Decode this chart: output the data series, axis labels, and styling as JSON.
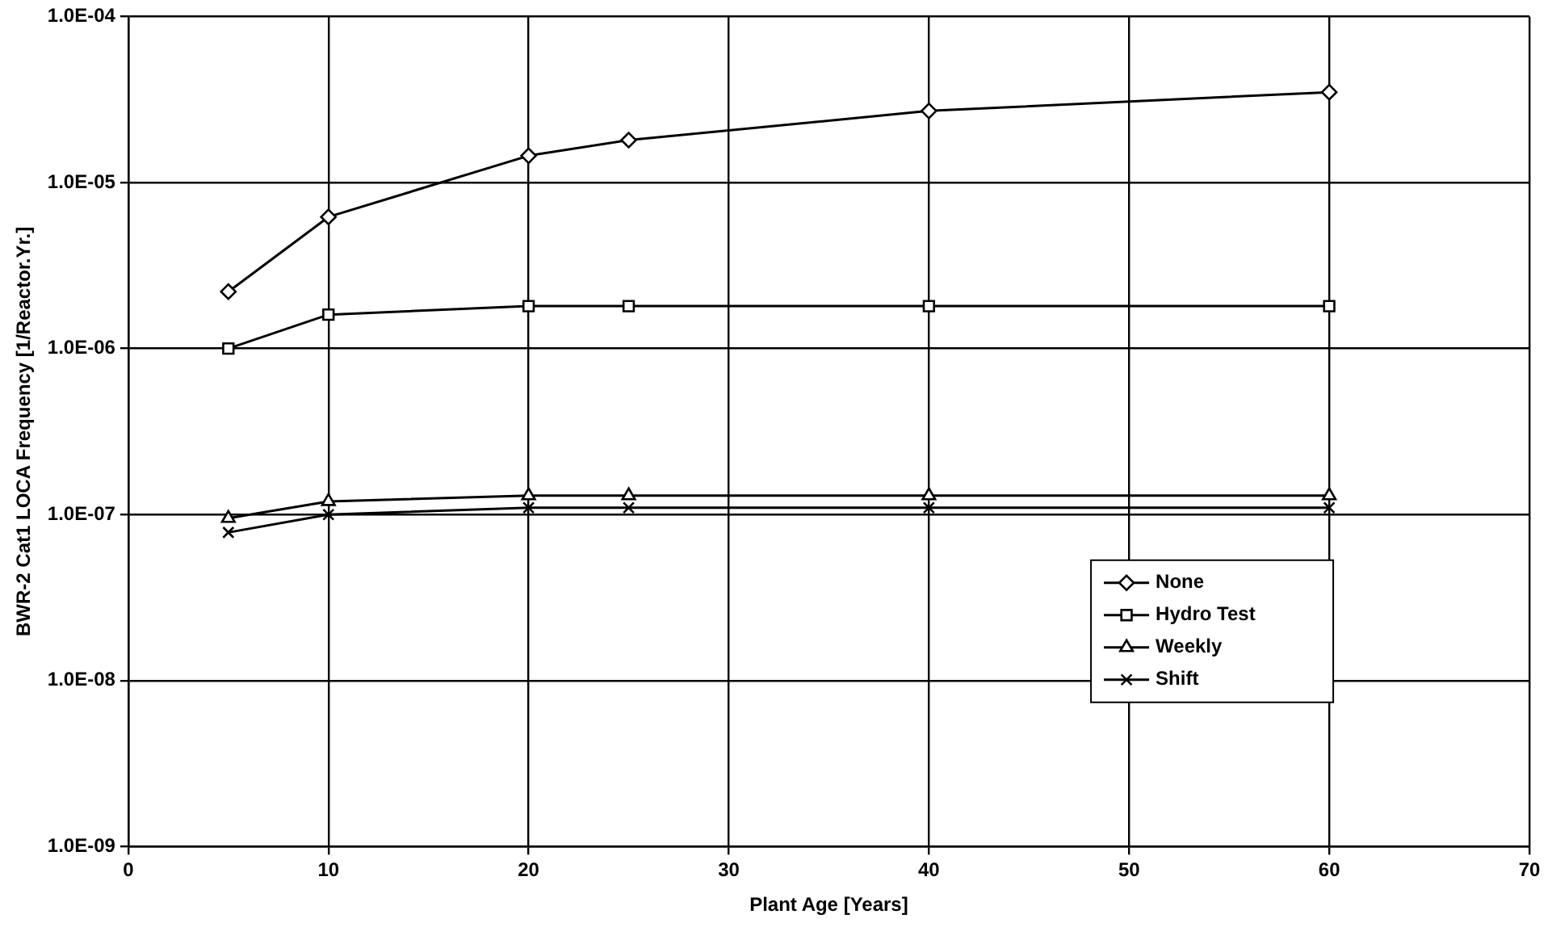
{
  "chart_data": {
    "type": "line",
    "xlabel": "Plant Age [Years]",
    "ylabel": "BWR-2 Cat1 LOCA Frequency [1/Reactor.Yr.]",
    "x": [
      5,
      10,
      20,
      25,
      40,
      60
    ],
    "series": [
      {
        "name": "None",
        "color": "#000000",
        "marker": "diamond",
        "values": [
          2.2e-06,
          6.2e-06,
          1.45e-05,
          1.8e-05,
          2.7e-05,
          3.5e-05
        ]
      },
      {
        "name": "Hydro Test",
        "color": "#000000",
        "marker": "square",
        "values": [
          1e-06,
          1.6e-06,
          1.8e-06,
          1.8e-06,
          1.8e-06,
          1.8e-06
        ]
      },
      {
        "name": "Weekly",
        "color": "#000000",
        "marker": "triangle",
        "values": [
          9.5e-08,
          1.2e-07,
          1.3e-07,
          1.3e-07,
          1.3e-07,
          1.3e-07
        ]
      },
      {
        "name": "Shift",
        "color": "#000000",
        "marker": "cross",
        "values": [
          7.8e-08,
          1e-07,
          1.1e-07,
          1.1e-07,
          1.1e-07,
          1.1e-07
        ]
      }
    ],
    "log": "y",
    "xlim": [
      0,
      70
    ],
    "xticks": [
      0,
      10,
      20,
      30,
      40,
      50,
      60,
      70
    ],
    "ylim": [
      1e-09,
      0.0001
    ],
    "yticks": [
      {
        "value": 1e-09,
        "label": "1.0E-09"
      },
      {
        "value": 1e-08,
        "label": "1.0E-08"
      },
      {
        "value": 1e-07,
        "label": "1.0E-07"
      },
      {
        "value": 1e-06,
        "label": "1.0E-06"
      },
      {
        "value": 1e-05,
        "label": "1.0E-05"
      },
      {
        "value": 0.0001,
        "label": "1.0E-04"
      }
    ],
    "grid": true,
    "legend": "right",
    "line_style": "solid"
  }
}
